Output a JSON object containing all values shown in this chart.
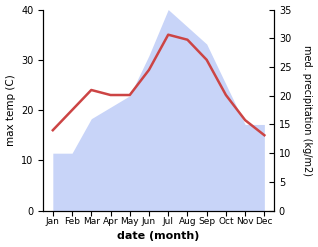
{
  "months": [
    "Jan",
    "Feb",
    "Mar",
    "Apr",
    "May",
    "Jun",
    "Jul",
    "Aug",
    "Sep",
    "Oct",
    "Nov",
    "Dec"
  ],
  "temperature": [
    16,
    20,
    24,
    23,
    23,
    28,
    35,
    34,
    30,
    23,
    18,
    15
  ],
  "precipitation": [
    10,
    10,
    16,
    18,
    20,
    27,
    35,
    32,
    29,
    22,
    15,
    15
  ],
  "temp_color": "#cc4444",
  "precip_color_fill": "#c8d4f8",
  "left_ylabel": "max temp (C)",
  "right_ylabel": "med. precipitation (kg/m2)",
  "xlabel": "date (month)",
  "left_ylim": [
    0,
    40
  ],
  "right_ylim": [
    0,
    35
  ],
  "left_yticks": [
    0,
    10,
    20,
    30,
    40
  ],
  "right_yticks": [
    0,
    5,
    10,
    15,
    20,
    25,
    30,
    35
  ],
  "background_color": "#ffffff"
}
